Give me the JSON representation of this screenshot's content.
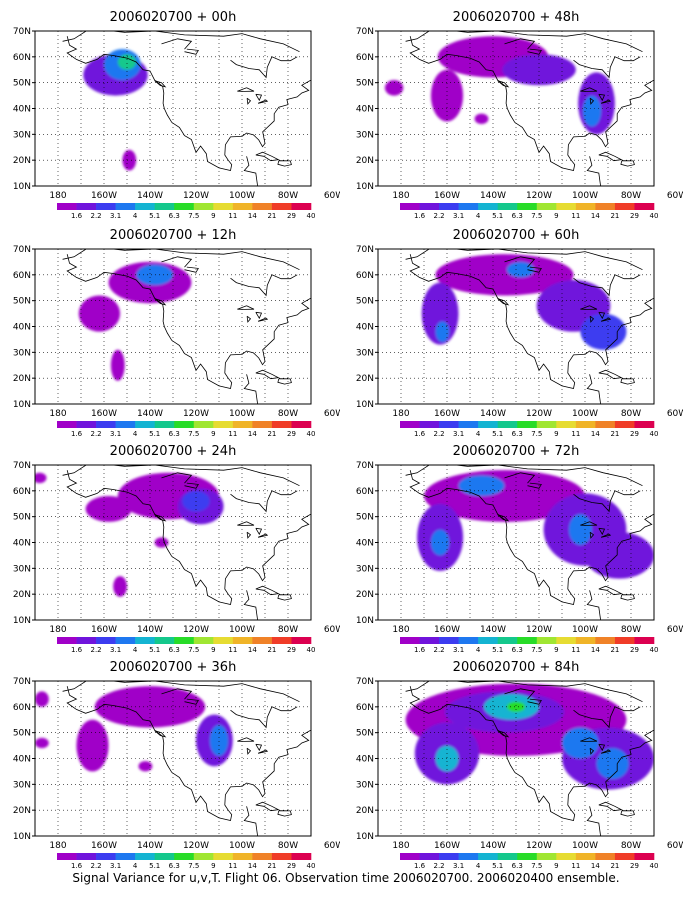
{
  "caption": "Signal Variance for u,v,T. Flight 06. Observation time 2006020700. 2006020400 ensemble.",
  "colors": {
    "levels": [
      "#a000c8",
      "#7014dc",
      "#3c3cf0",
      "#1e78f0",
      "#14b4d2",
      "#14c88c",
      "#28dc28",
      "#a0e632",
      "#e6dc32",
      "#f0b428",
      "#f08228",
      "#f03c28",
      "#dc0050"
    ],
    "land_outline": "#000000",
    "grid": "#000000"
  },
  "chart_data": [
    {
      "type": "heatmap",
      "title": "2006020700 + 00h",
      "x_ticks": [
        "180",
        "160W",
        "140W",
        "120W",
        "100W",
        "80W",
        "60W"
      ],
      "y_ticks": [
        "10N",
        "20N",
        "30N",
        "40N",
        "50N",
        "60N",
        "70N"
      ],
      "xlim": [
        -180,
        -60
      ],
      "ylim": [
        10,
        70
      ],
      "colorbar_labels": [
        "1.6",
        "2.2",
        "3.1",
        "4",
        "5.1",
        "6.3",
        "7.5",
        "9",
        "11",
        "14",
        "21",
        "29",
        "40"
      ],
      "blobs": [
        {
          "lon": -145,
          "lat": 53,
          "rlon": 14,
          "rlat": 8,
          "level": 1
        },
        {
          "lon": -142,
          "lat": 57,
          "rlon": 8,
          "rlat": 6,
          "level": 3
        },
        {
          "lon": -140,
          "lat": 58,
          "rlon": 4,
          "rlat": 3,
          "level": 5
        },
        {
          "lon": -139,
          "lat": 20,
          "rlon": 3,
          "rlat": 4,
          "level": 0
        }
      ]
    },
    {
      "type": "heatmap",
      "title": "2006020700 + 48h",
      "x_ticks": [
        "180",
        "160W",
        "140W",
        "120W",
        "100W",
        "80W",
        "60W"
      ],
      "y_ticks": [
        "10N",
        "20N",
        "30N",
        "40N",
        "50N",
        "60N",
        "70N"
      ],
      "xlim": [
        -180,
        -60
      ],
      "ylim": [
        10,
        70
      ],
      "colorbar_labels": [
        "1.6",
        "2.2",
        "3.1",
        "4",
        "5.1",
        "6.3",
        "7.5",
        "9",
        "11",
        "14",
        "21",
        "29",
        "40"
      ],
      "blobs": [
        {
          "lon": -130,
          "lat": 60,
          "rlon": 24,
          "rlat": 8,
          "level": 0
        },
        {
          "lon": -150,
          "lat": 45,
          "rlon": 7,
          "rlat": 10,
          "level": 0
        },
        {
          "lon": -110,
          "lat": 55,
          "rlon": 16,
          "rlat": 6,
          "level": 1
        },
        {
          "lon": -85,
          "lat": 42,
          "rlon": 8,
          "rlat": 12,
          "level": 1
        },
        {
          "lon": -87,
          "lat": 39,
          "rlon": 4,
          "rlat": 6,
          "level": 3
        },
        {
          "lon": -173,
          "lat": 48,
          "rlon": 4,
          "rlat": 3,
          "level": 0
        },
        {
          "lon": -135,
          "lat": 36,
          "rlon": 3,
          "rlat": 2,
          "level": 0
        }
      ]
    },
    {
      "type": "heatmap",
      "title": "2006020700 + 12h",
      "x_ticks": [
        "180",
        "160W",
        "140W",
        "120W",
        "100W",
        "80W",
        "60W"
      ],
      "y_ticks": [
        "10N",
        "20N",
        "30N",
        "40N",
        "50N",
        "60N",
        "70N"
      ],
      "xlim": [
        -180,
        -60
      ],
      "ylim": [
        10,
        70
      ],
      "colorbar_labels": [
        "1.6",
        "2.2",
        "3.1",
        "4",
        "5.1",
        "6.3",
        "7.5",
        "9",
        "11",
        "14",
        "21",
        "29",
        "40"
      ],
      "blobs": [
        {
          "lon": -130,
          "lat": 57,
          "rlon": 18,
          "rlat": 8,
          "level": 0
        },
        {
          "lon": -152,
          "lat": 45,
          "rlon": 9,
          "rlat": 7,
          "level": 0
        },
        {
          "lon": -128,
          "lat": 60,
          "rlon": 8,
          "rlat": 4,
          "level": 3
        },
        {
          "lon": -144,
          "lat": 25,
          "rlon": 3,
          "rlat": 6,
          "level": 0
        }
      ]
    },
    {
      "type": "heatmap",
      "title": "2006020700 + 60h",
      "x_ticks": [
        "180",
        "160W",
        "140W",
        "120W",
        "100W",
        "80W",
        "60W"
      ],
      "y_ticks": [
        "10N",
        "20N",
        "30N",
        "40N",
        "50N",
        "60N",
        "70N"
      ],
      "xlim": [
        -180,
        -60
      ],
      "ylim": [
        10,
        70
      ],
      "colorbar_labels": [
        "1.6",
        "2.2",
        "3.1",
        "4",
        "5.1",
        "6.3",
        "7.5",
        "9",
        "11",
        "14",
        "21",
        "29",
        "40"
      ],
      "blobs": [
        {
          "lon": -125,
          "lat": 60,
          "rlon": 30,
          "rlat": 8,
          "level": 0
        },
        {
          "lon": -153,
          "lat": 45,
          "rlon": 8,
          "rlat": 12,
          "level": 1
        },
        {
          "lon": -95,
          "lat": 48,
          "rlon": 16,
          "rlat": 10,
          "level": 1
        },
        {
          "lon": -82,
          "lat": 38,
          "rlon": 10,
          "rlat": 7,
          "level": 2
        },
        {
          "lon": -118,
          "lat": 62,
          "rlon": 6,
          "rlat": 3,
          "level": 3
        },
        {
          "lon": -152,
          "lat": 38,
          "rlon": 3,
          "rlat": 4,
          "level": 3
        }
      ]
    },
    {
      "type": "heatmap",
      "title": "2006020700 + 24h",
      "x_ticks": [
        "180",
        "160W",
        "140W",
        "120W",
        "100W",
        "80W",
        "60W"
      ],
      "y_ticks": [
        "10N",
        "20N",
        "30N",
        "40N",
        "50N",
        "60N",
        "70N"
      ],
      "xlim": [
        -180,
        -60
      ],
      "ylim": [
        10,
        70
      ],
      "colorbar_labels": [
        "1.6",
        "2.2",
        "3.1",
        "4",
        "5.1",
        "6.3",
        "7.5",
        "9",
        "11",
        "14",
        "21",
        "29",
        "40"
      ],
      "blobs": [
        {
          "lon": -122,
          "lat": 58,
          "rlon": 22,
          "rlat": 9,
          "level": 0
        },
        {
          "lon": -148,
          "lat": 53,
          "rlon": 10,
          "rlat": 5,
          "level": 0
        },
        {
          "lon": -108,
          "lat": 54,
          "rlon": 10,
          "rlat": 7,
          "level": 1
        },
        {
          "lon": -110,
          "lat": 56,
          "rlon": 6,
          "rlat": 4,
          "level": 2
        },
        {
          "lon": -143,
          "lat": 23,
          "rlon": 3,
          "rlat": 4,
          "level": 0
        },
        {
          "lon": -125,
          "lat": 40,
          "rlon": 3,
          "rlat": 2,
          "level": 0
        },
        {
          "lon": -178,
          "lat": 65,
          "rlon": 3,
          "rlat": 2,
          "level": 0
        }
      ]
    },
    {
      "type": "heatmap",
      "title": "2006020700 + 72h",
      "x_ticks": [
        "180",
        "160W",
        "140W",
        "120W",
        "100W",
        "80W",
        "60W"
      ],
      "y_ticks": [
        "10N",
        "20N",
        "30N",
        "40N",
        "50N",
        "60N",
        "70N"
      ],
      "xlim": [
        -180,
        -60
      ],
      "ylim": [
        10,
        70
      ],
      "colorbar_labels": [
        "1.6",
        "2.2",
        "3.1",
        "4",
        "5.1",
        "6.3",
        "7.5",
        "9",
        "11",
        "14",
        "21",
        "29",
        "40"
      ],
      "blobs": [
        {
          "lon": -125,
          "lat": 58,
          "rlon": 35,
          "rlat": 10,
          "level": 0
        },
        {
          "lon": -153,
          "lat": 42,
          "rlon": 10,
          "rlat": 13,
          "level": 1
        },
        {
          "lon": -90,
          "lat": 45,
          "rlon": 18,
          "rlat": 14,
          "level": 1
        },
        {
          "lon": -75,
          "lat": 35,
          "rlon": 15,
          "rlat": 9,
          "level": 1
        },
        {
          "lon": -135,
          "lat": 62,
          "rlon": 10,
          "rlat": 4,
          "level": 3
        },
        {
          "lon": -153,
          "lat": 40,
          "rlon": 4,
          "rlat": 5,
          "level": 3
        },
        {
          "lon": -92,
          "lat": 45,
          "rlon": 5,
          "rlat": 6,
          "level": 3
        }
      ]
    },
    {
      "type": "heatmap",
      "title": "2006020700 + 36h",
      "x_ticks": [
        "180",
        "160W",
        "140W",
        "120W",
        "100W",
        "80W",
        "60W"
      ],
      "y_ticks": [
        "10N",
        "20N",
        "30N",
        "40N",
        "50N",
        "60N",
        "70N"
      ],
      "xlim": [
        -180,
        -60
      ],
      "ylim": [
        10,
        70
      ],
      "colorbar_labels": [
        "1.6",
        "2.2",
        "3.1",
        "4",
        "5.1",
        "6.3",
        "7.5",
        "9",
        "11",
        "14",
        "21",
        "29",
        "40"
      ],
      "blobs": [
        {
          "lon": -130,
          "lat": 60,
          "rlon": 24,
          "rlat": 8,
          "level": 0
        },
        {
          "lon": -155,
          "lat": 45,
          "rlon": 7,
          "rlat": 10,
          "level": 0
        },
        {
          "lon": -102,
          "lat": 47,
          "rlon": 8,
          "rlat": 10,
          "level": 1
        },
        {
          "lon": -100,
          "lat": 47,
          "rlon": 4,
          "rlat": 6,
          "level": 3
        },
        {
          "lon": -177,
          "lat": 46,
          "rlon": 3,
          "rlat": 2,
          "level": 0
        },
        {
          "lon": -177,
          "lat": 63,
          "rlon": 3,
          "rlat": 3,
          "level": 0
        },
        {
          "lon": -132,
          "lat": 37,
          "rlon": 3,
          "rlat": 2,
          "level": 0
        }
      ]
    },
    {
      "type": "heatmap",
      "title": "2006020700 + 84h",
      "x_ticks": [
        "180",
        "160W",
        "140W",
        "120W",
        "100W",
        "80W",
        "60W"
      ],
      "y_ticks": [
        "10N",
        "20N",
        "30N",
        "40N",
        "50N",
        "60N",
        "70N"
      ],
      "xlim": [
        -180,
        -60
      ],
      "ylim": [
        10,
        70
      ],
      "colorbar_labels": [
        "1.6",
        "2.2",
        "3.1",
        "4",
        "5.1",
        "6.3",
        "7.5",
        "9",
        "11",
        "14",
        "21",
        "29",
        "40"
      ],
      "blobs": [
        {
          "lon": -120,
          "lat": 55,
          "rlon": 48,
          "rlat": 14,
          "level": 0
        },
        {
          "lon": -125,
          "lat": 58,
          "rlon": 26,
          "rlat": 8,
          "level": 1
        },
        {
          "lon": -150,
          "lat": 42,
          "rlon": 14,
          "rlat": 12,
          "level": 1
        },
        {
          "lon": -80,
          "lat": 40,
          "rlon": 20,
          "rlat": 12,
          "level": 1
        },
        {
          "lon": -122,
          "lat": 60,
          "rlon": 12,
          "rlat": 5,
          "level": 4
        },
        {
          "lon": -120,
          "lat": 60,
          "rlon": 4,
          "rlat": 2,
          "level": 6
        },
        {
          "lon": -150,
          "lat": 40,
          "rlon": 5,
          "rlat": 5,
          "level": 4
        },
        {
          "lon": -92,
          "lat": 46,
          "rlon": 8,
          "rlat": 6,
          "level": 3
        },
        {
          "lon": -78,
          "lat": 38,
          "rlon": 7,
          "rlat": 6,
          "level": 3
        }
      ]
    }
  ]
}
